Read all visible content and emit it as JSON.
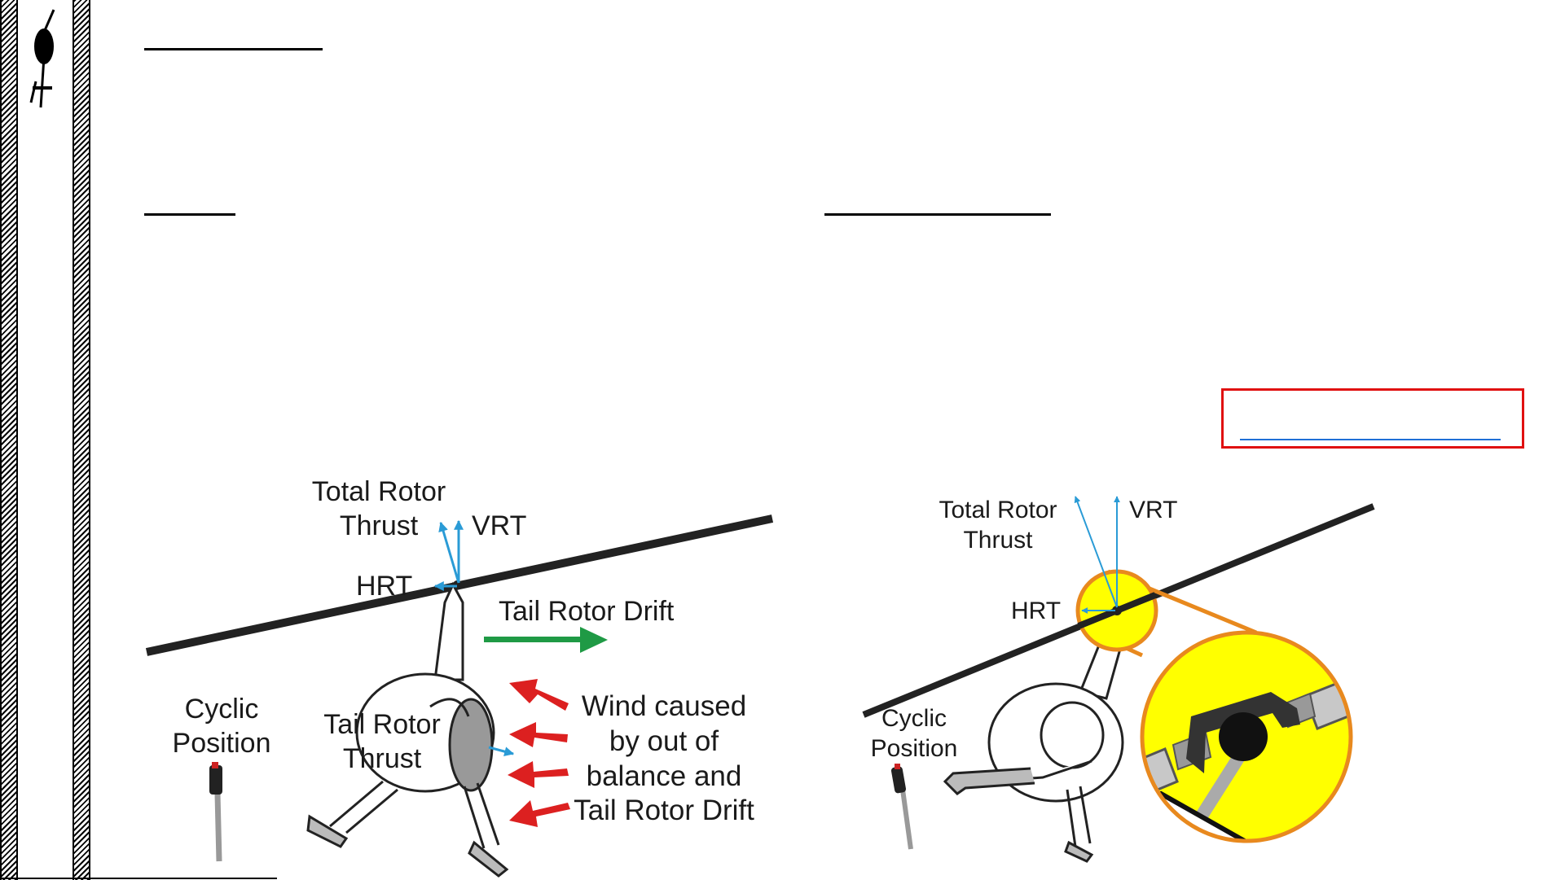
{
  "left_figure": {
    "total_rotor_thrust": [
      "Total Rotor",
      "Thrust"
    ],
    "vrt": "VRT",
    "hrt": "HRT",
    "tail_rotor_drift": "Tail Rotor Drift",
    "cyclic_position": [
      "Cyclic",
      "Position"
    ],
    "tail_rotor_thrust": [
      "Tail Rotor",
      "Thrust"
    ],
    "wind_note": [
      "Wind caused",
      "by out of",
      "balance and",
      "Tail Rotor Drift"
    ]
  },
  "right_figure": {
    "total_rotor_thrust": [
      "Total Rotor",
      "Thrust"
    ],
    "vrt": "VRT",
    "hrt": "HRT",
    "cyclic_position": [
      "Cyclic",
      "Position"
    ]
  },
  "colors": {
    "thrust_arrow": "#2a9bd6",
    "drift_arrow": "#1f9a45",
    "wind_arrow": "#dc2020",
    "magnifier_fill": "#ffff00",
    "magnifier_stroke": "#e8891e",
    "link_box_border": "#e01010",
    "link_underline": "#1f6fd6"
  }
}
